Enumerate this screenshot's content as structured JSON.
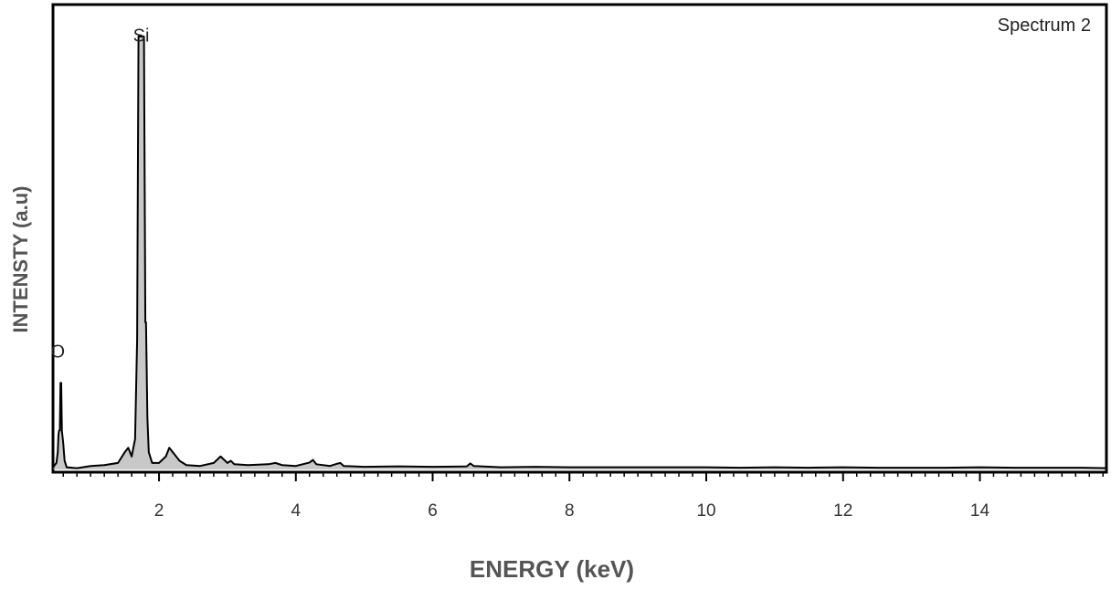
{
  "chart_data": {
    "type": "line",
    "legend": "Spectrum 2",
    "legend_position": "top-right",
    "xlabel": "ENERGY (keV)",
    "ylabel": "INTENSTY (a.u)",
    "xlim": [
      0.45,
      15.85
    ],
    "ylim": [
      0,
      100
    ],
    "xticks": [
      2,
      4,
      6,
      8,
      10,
      12,
      14
    ],
    "xticks_minor_step": 0.2,
    "grid": false,
    "line_color": "#000000",
    "fill_color": "#9a9a9a",
    "annotations": [
      {
        "text": "O",
        "x": 0.52,
        "y": 25
      },
      {
        "text": "Si",
        "x": 1.74,
        "y": 98
      }
    ],
    "series": [
      {
        "x": [
          0.45,
          0.5,
          0.52,
          0.53,
          0.54,
          0.55,
          0.56,
          0.57,
          0.58,
          0.6,
          0.62,
          0.65,
          0.8,
          1.0,
          1.2,
          1.4,
          1.5,
          1.55,
          1.6,
          1.65,
          1.68,
          1.7,
          1.72,
          1.73,
          1.74,
          1.75,
          1.78,
          1.8,
          1.81,
          1.83,
          1.85,
          1.9,
          2.0,
          2.1,
          2.15,
          2.2,
          2.25,
          2.3,
          2.4,
          2.6,
          2.8,
          2.9,
          3.0,
          3.05,
          3.1,
          3.3,
          3.6,
          3.7,
          3.8,
          4.0,
          4.2,
          4.25,
          4.3,
          4.5,
          4.6,
          4.65,
          4.7,
          5.0,
          5.5,
          6.0,
          6.5,
          6.55,
          6.6,
          7.0,
          7.5,
          8.0,
          8.5,
          9.0,
          9.5,
          10.0,
          10.5,
          11.0,
          11.5,
          12.0,
          12.5,
          13.0,
          13.5,
          14.0,
          14.5,
          15.0,
          15.5,
          15.85
        ],
        "y": [
          0.5,
          1.5,
          4,
          8,
          9,
          9,
          20,
          20,
          9,
          6,
          2,
          0.5,
          0.3,
          0.8,
          1,
          1.5,
          4,
          5,
          3,
          7,
          30,
          100,
          100,
          100,
          100,
          100,
          100,
          34,
          34,
          12,
          4,
          1.5,
          1.5,
          3,
          5,
          4,
          3,
          2,
          1,
          0.8,
          1.5,
          3,
          1.5,
          2,
          1.2,
          1,
          1.2,
          1.5,
          1,
          0.8,
          1.6,
          2.2,
          1.2,
          0.8,
          1.3,
          1.5,
          0.8,
          0.6,
          0.7,
          0.6,
          0.7,
          1.4,
          0.8,
          0.5,
          0.6,
          0.5,
          0.5,
          0.5,
          0.5,
          0.5,
          0.4,
          0.5,
          0.4,
          0.5,
          0.4,
          0.4,
          0.4,
          0.5,
          0.4,
          0.4,
          0.4,
          0.3
        ]
      }
    ]
  }
}
